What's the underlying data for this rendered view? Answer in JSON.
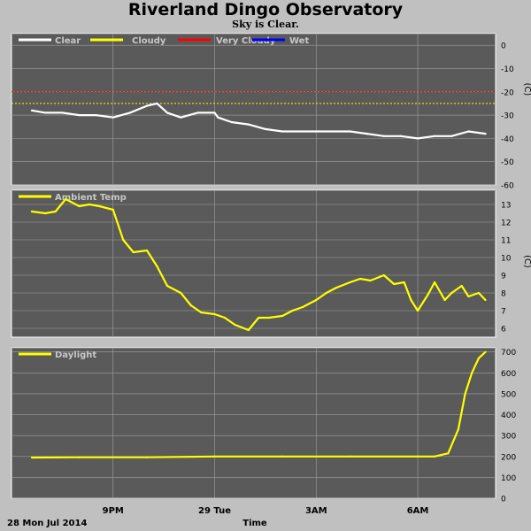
{
  "title": "Riverland Dingo Observatory",
  "subtitle": "Sky is Clear.",
  "footer": {
    "date": "28 Mon Jul 2014",
    "xlabel": "Time"
  },
  "colors": {
    "background": "#c0c0c0",
    "plot_bg": "#5a5a5a",
    "grid": "#a0a0a0",
    "clear": "#ffffff",
    "cloudy": "#ffff00",
    "very_cloudy": "#ff0000",
    "wet": "#0000ff"
  },
  "chart_data": [
    {
      "type": "line",
      "panel": "sky",
      "ylabel": "(C)",
      "ylim": [
        -60,
        5
      ],
      "yticks": [
        "0",
        "-10",
        "-20",
        "-30",
        "-40",
        "-50",
        "-60"
      ],
      "xticks": [
        "9PM",
        "29 Tue",
        "3AM",
        "6AM"
      ],
      "grid": true,
      "legend": [
        "Clear",
        "Cloudy",
        "Very Cloudy",
        "Wet"
      ],
      "thresholds": [
        {
          "name": "Very Cloudy",
          "value": -20,
          "color": "#ff0000"
        },
        {
          "name": "Cloudy",
          "value": -25,
          "color": "#ffff00"
        }
      ],
      "series": [
        {
          "name": "Clear",
          "color": "#ffffff",
          "x": [
            18.6,
            19.0,
            19.5,
            20.0,
            20.5,
            21.0,
            21.5,
            22.0,
            22.3,
            22.6,
            23.0,
            23.5,
            24.0,
            24.1,
            24.5,
            25.0,
            25.5,
            26.0,
            26.5,
            27.0,
            27.5,
            28.0,
            28.5,
            29.0,
            29.5,
            30.0,
            30.5,
            31.0,
            31.5,
            32.0
          ],
          "y": [
            -28,
            -29,
            -29,
            -30,
            -30,
            -31,
            -29,
            -26,
            -25,
            -29,
            -31,
            -29,
            -29,
            -31,
            -33,
            -34,
            -36,
            -37,
            -37,
            -37,
            -37,
            -37,
            -38,
            -39,
            -39,
            -40,
            -39,
            -39,
            -37,
            -38
          ]
        }
      ]
    },
    {
      "type": "line",
      "panel": "ambient",
      "ylabel": "(C)",
      "ylim": [
        5.5,
        13.8
      ],
      "yticks": [
        "13",
        "12",
        "11",
        "10",
        "9",
        "8",
        "7",
        "6"
      ],
      "xticks": [
        "9PM",
        "29 Tue",
        "3AM",
        "6AM"
      ],
      "grid": true,
      "legend": [
        "Ambient Temp"
      ],
      "series": [
        {
          "name": "Ambient Temp",
          "color": "#ffff00",
          "x": [
            18.6,
            19.0,
            19.3,
            19.6,
            20.0,
            20.3,
            20.6,
            21.0,
            21.3,
            21.6,
            22.0,
            22.3,
            22.6,
            23.0,
            23.3,
            23.6,
            24.0,
            24.3,
            24.6,
            25.0,
            25.3,
            25.6,
            26.0,
            26.3,
            26.6,
            27.0,
            27.3,
            27.6,
            28.0,
            28.3,
            28.6,
            29.0,
            29.3,
            29.6,
            29.8,
            30.0,
            30.3,
            30.5,
            30.8,
            31.0,
            31.3,
            31.5,
            31.8,
            32.0
          ],
          "y": [
            12.6,
            12.5,
            12.6,
            13.3,
            12.9,
            13.0,
            12.9,
            12.7,
            11.0,
            10.3,
            10.4,
            9.5,
            8.4,
            8.0,
            7.3,
            6.9,
            6.8,
            6.6,
            6.2,
            5.9,
            6.6,
            6.6,
            6.7,
            7.0,
            7.2,
            7.6,
            8.0,
            8.3,
            8.6,
            8.8,
            8.7,
            9.0,
            8.5,
            8.6,
            7.6,
            7.0,
            7.9,
            8.6,
            7.6,
            8.0,
            8.4,
            7.8,
            8.0,
            7.6
          ]
        }
      ]
    },
    {
      "type": "line",
      "panel": "daylight",
      "ylabel": "",
      "ylim": [
        0,
        720
      ],
      "yticks": [
        "700",
        "600",
        "500",
        "400",
        "300",
        "200",
        "100",
        "0"
      ],
      "xticks": [
        "9PM",
        "29 Tue",
        "3AM",
        "6AM"
      ],
      "grid": true,
      "legend": [
        "Daylight"
      ],
      "series": [
        {
          "name": "Daylight",
          "color": "#ffff00",
          "x": [
            18.6,
            20.0,
            22.0,
            24.0,
            26.0,
            28.0,
            30.0,
            30.5,
            30.9,
            31.2,
            31.4,
            31.6,
            31.8,
            32.0
          ],
          "y": [
            195,
            196,
            196,
            200,
            200,
            200,
            200,
            200,
            215,
            330,
            500,
            600,
            670,
            700
          ]
        }
      ]
    }
  ]
}
